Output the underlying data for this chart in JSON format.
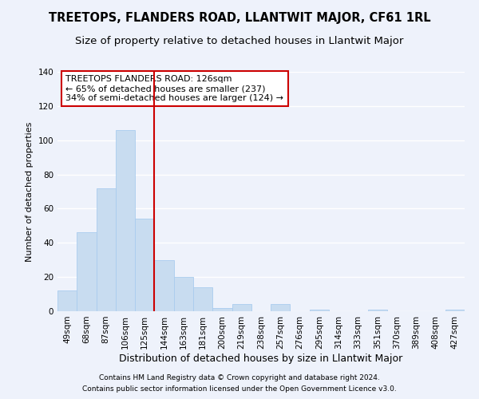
{
  "title": "TREETOPS, FLANDERS ROAD, LLANTWIT MAJOR, CF61 1RL",
  "subtitle": "Size of property relative to detached houses in Llantwit Major",
  "xlabel": "Distribution of detached houses by size in Llantwit Major",
  "ylabel": "Number of detached properties",
  "categories": [
    "49sqm",
    "68sqm",
    "87sqm",
    "106sqm",
    "125sqm",
    "144sqm",
    "163sqm",
    "181sqm",
    "200sqm",
    "219sqm",
    "238sqm",
    "257sqm",
    "276sqm",
    "295sqm",
    "314sqm",
    "333sqm",
    "351sqm",
    "370sqm",
    "389sqm",
    "408sqm",
    "427sqm"
  ],
  "values": [
    12,
    46,
    72,
    106,
    54,
    30,
    20,
    14,
    2,
    4,
    0,
    4,
    0,
    1,
    0,
    0,
    1,
    0,
    0,
    0,
    1
  ],
  "bar_color": "#c8dcf0",
  "bar_edge_color": "#aaccee",
  "highlight_color": "#cc0000",
  "highlight_index": 4,
  "annotation_text": "TREETOPS FLANDERS ROAD: 126sqm\n← 65% of detached houses are smaller (237)\n34% of semi-detached houses are larger (124) →",
  "annotation_box_color": "#ffffff",
  "annotation_box_edge": "#cc0000",
  "footnote1": "Contains HM Land Registry data © Crown copyright and database right 2024.",
  "footnote2": "Contains public sector information licensed under the Open Government Licence v3.0.",
  "background_color": "#eef2fb",
  "ylim": [
    0,
    140
  ],
  "yticks": [
    0,
    20,
    40,
    60,
    80,
    100,
    120,
    140
  ],
  "title_fontsize": 10.5,
  "subtitle_fontsize": 9.5,
  "xlabel_fontsize": 9,
  "ylabel_fontsize": 8,
  "tick_fontsize": 7.5,
  "footnote_fontsize": 6.5,
  "annotation_fontsize": 8
}
